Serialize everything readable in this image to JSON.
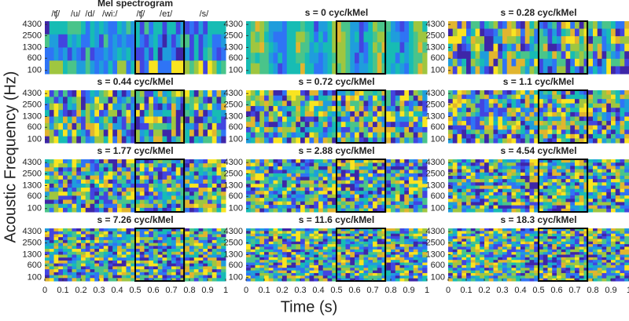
{
  "chart_data": {
    "type": "spectrogram-grid",
    "ylabel": "Acoustic Frequency (Hz)",
    "xlabel": "Time (s)",
    "yscale": "mel",
    "xlim": [
      0,
      1
    ],
    "xticks": [
      0,
      0.1,
      0.2,
      0.3,
      0.4,
      0.5,
      0.6,
      0.7,
      0.8,
      0.9,
      1
    ],
    "ylim": [
      0,
      5000
    ],
    "yticks": [
      100,
      600,
      1300,
      2500,
      4300
    ],
    "highlight_x": [
      0.5,
      0.77
    ],
    "phonemes": [
      {
        "label": "/ʧ/",
        "x": 0.06
      },
      {
        "label": "/u/",
        "x": 0.17
      },
      {
        "label": "/d/",
        "x": 0.25
      },
      {
        "label": "/wi:/",
        "x": 0.36
      },
      {
        "label": "/ʧ/",
        "x": 0.53
      },
      {
        "label": "/eɪ/",
        "x": 0.67
      },
      {
        "label": "/s/",
        "x": 0.88
      }
    ],
    "panels": [
      {
        "title": "Mel spectrogram"
      },
      {
        "title": "s = 0 cyc/kMel"
      },
      {
        "title": "s = 0.28 cyc/kMel"
      },
      {
        "title": "s = 0.44 cyc/kMel"
      },
      {
        "title": "s = 0.72 cyc/kMel"
      },
      {
        "title": "s = 1.1 cyc/kMel"
      },
      {
        "title": "s = 1.77 cyc/kMel"
      },
      {
        "title": "s = 2.88 cyc/kMel"
      },
      {
        "title": "s = 4.54 cyc/kMel"
      },
      {
        "title": "s = 7.26 cyc/kMel"
      },
      {
        "title": "s = 11.6 cyc/kMel"
      },
      {
        "title": "s = 18.3 cyc/kMel"
      }
    ]
  }
}
